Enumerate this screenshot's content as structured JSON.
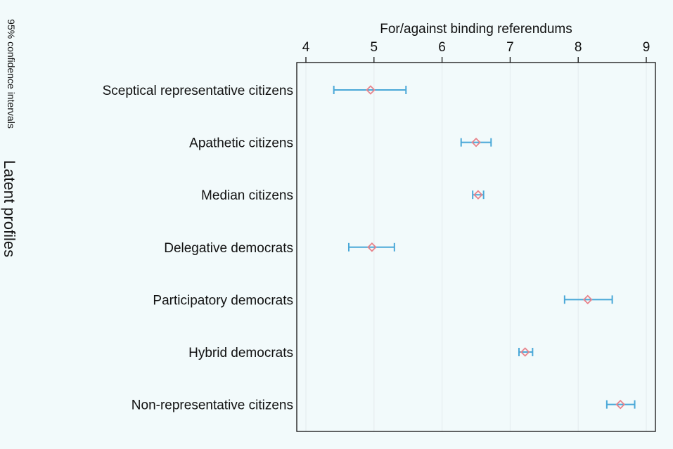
{
  "chart_data": {
    "type": "scatter",
    "xlabel": "For/against binding referendums",
    "ylabel": "Latent profiles",
    "note": "95% confidence intervals",
    "xlim": [
      4,
      9.15
    ],
    "xticks": [
      4,
      5,
      6,
      7,
      8,
      9
    ],
    "grid": true,
    "legend": "none",
    "colors": {
      "point": "#e8838b",
      "ci": "#4aa8d8",
      "grid": "#e6edf0",
      "background": "#f2fafb"
    },
    "categories": [
      "Sceptical representative citizens",
      "Apathetic citizens",
      "Median citizens",
      "Delegative democrats",
      "Participatory democrats",
      "Hybrid democrats",
      "Non-representative citizens"
    ],
    "series": [
      {
        "values": [
          4.95,
          6.5,
          6.53,
          4.97,
          8.14,
          7.22,
          8.62
        ],
        "ci_low": [
          4.41,
          6.28,
          6.45,
          4.63,
          7.8,
          7.13,
          8.42
        ],
        "ci_high": [
          5.47,
          6.72,
          6.61,
          5.3,
          8.5,
          7.33,
          8.83
        ]
      }
    ]
  }
}
